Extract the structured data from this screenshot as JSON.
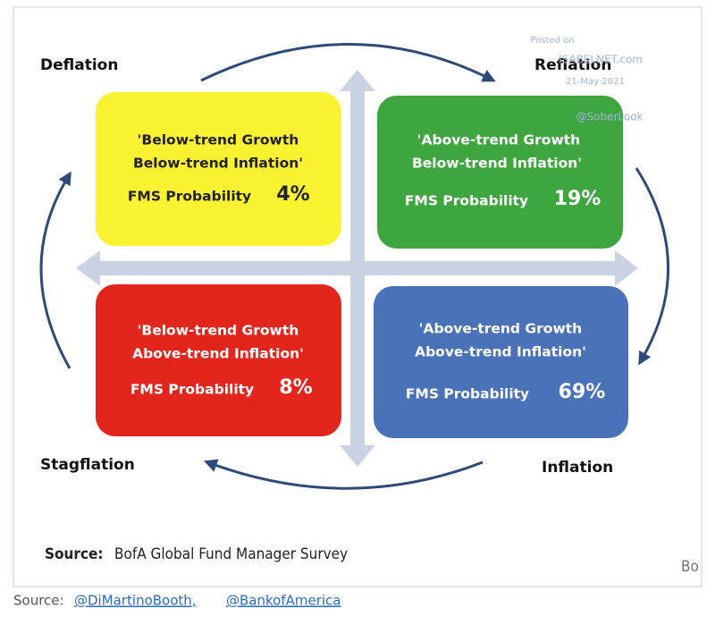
{
  "corners": {
    "top_left": "Deflation",
    "top_right": "Reflation",
    "bottom_left": "Stagflation",
    "bottom_right": "Inflation"
  },
  "watermark": [
    "Posted on",
    "ISABELNET.com",
    "21-May-2021",
    "@SoberLook"
  ],
  "quadrants": [
    {
      "line1": "'Below-trend Growth",
      "line2": "Below-trend Inflation'",
      "label": "FMS Probability",
      "probability": "4%"
    },
    {
      "line1": "'Above-trend Growth",
      "line2": "Below-trend Inflation'",
      "label": "FMS Probability",
      "probability": "19%"
    },
    {
      "line1": "'Below-trend Growth",
      "line2": "Above-trend Inflation'",
      "label": "FMS Probability",
      "probability": "8%"
    },
    {
      "line1": "'Above-trend Growth",
      "line2": "Above-trend Inflation'",
      "label": "FMS Probability",
      "probability": "69%"
    }
  ],
  "source": {
    "label": "Source:",
    "text": "BofA Global Fund Manager Survey",
    "cut": "Bo"
  },
  "footer": {
    "label": "Source:",
    "links": [
      "@DiMartinoBooth,",
      "@BankofAmerica"
    ]
  }
}
